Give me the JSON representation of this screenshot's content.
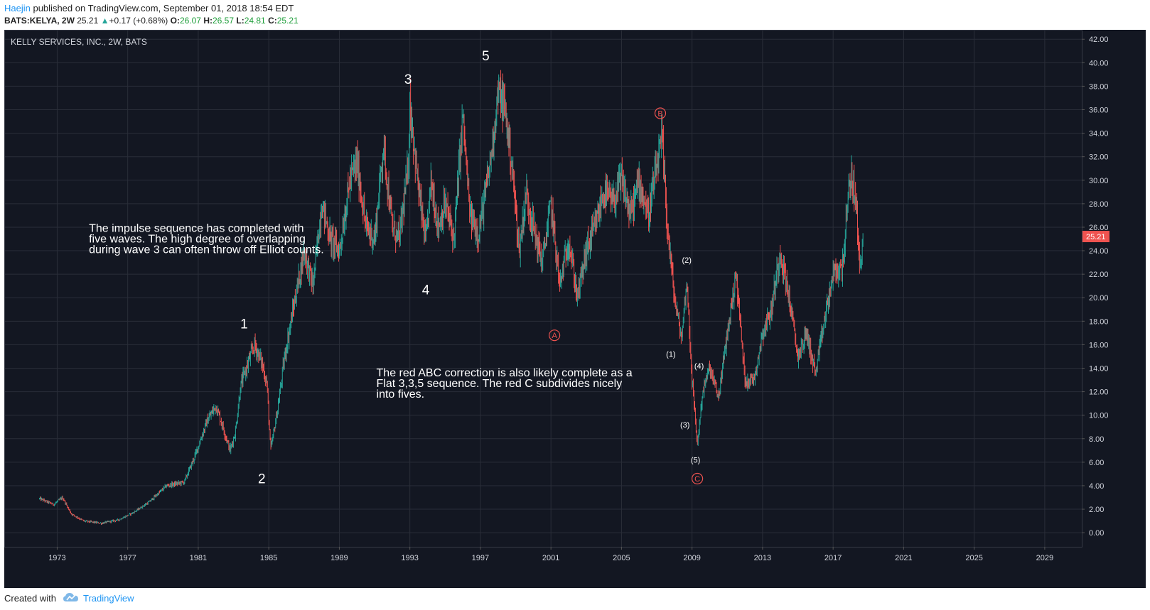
{
  "header": {
    "author": "Haejin",
    "published_text": " published on TradingView.com, September 01, 2018 18:54 EDT",
    "symbol": "BATS:KELYA, 2W",
    "last": "25.21",
    "change": "+0.17 (+0.68%)",
    "o_label": "O:",
    "o_value": "26.07",
    "h_label": "H:",
    "h_value": "26.57",
    "l_label": "L:",
    "l_value": "24.81",
    "c_label": "C:",
    "c_value": "25.21"
  },
  "footer": {
    "created_with": "Created with",
    "brand": "TradingView"
  },
  "colors": {
    "background": "#131722",
    "up": "#26a69a",
    "down": "#ef5350",
    "grid": "#2a2e39",
    "axis_text": "#d1d4dc",
    "wave_red": "#ef5350",
    "wave_white": "#ffffff"
  },
  "chart_data": {
    "type": "candlestick",
    "title": "KELLY SERVICES, INC., 2W, BATS",
    "ylim": [
      -1.2,
      42.8
    ],
    "y_ticks": [
      "0.00",
      "2.00",
      "4.00",
      "6.00",
      "8.00",
      "10.00",
      "12.00",
      "14.00",
      "16.00",
      "18.00",
      "20.00",
      "22.00",
      "24.00",
      "26.00",
      "28.00",
      "30.00",
      "32.00",
      "34.00",
      "36.00",
      "38.00",
      "40.00",
      "42.00"
    ],
    "xlim": [
      1970.0,
      2031.1
    ],
    "x_ticks": [
      "1973",
      "1977",
      "1981",
      "1985",
      "1989",
      "1993",
      "1997",
      "2001",
      "2005",
      "2009",
      "2013",
      "2017",
      "2021",
      "2025",
      "2029"
    ],
    "last_price_label": "25.21",
    "price_path": [
      [
        1972.0,
        2.9
      ],
      [
        1972.8,
        2.4
      ],
      [
        1973.3,
        3.0
      ],
      [
        1973.8,
        1.6
      ],
      [
        1974.5,
        1.0
      ],
      [
        1975.5,
        0.8
      ],
      [
        1976.5,
        1.1
      ],
      [
        1977.3,
        1.7
      ],
      [
        1978.2,
        2.6
      ],
      [
        1979.2,
        4.0
      ],
      [
        1980.2,
        4.3
      ],
      [
        1980.8,
        6.5
      ],
      [
        1981.5,
        9.5
      ],
      [
        1982.0,
        10.8
      ],
      [
        1982.4,
        9.0
      ],
      [
        1982.8,
        7.0
      ],
      [
        1983.1,
        8.5
      ],
      [
        1983.4,
        12.5
      ],
      [
        1983.9,
        14.8
      ],
      [
        1984.2,
        16.0
      ],
      [
        1984.6,
        14.5
      ],
      [
        1984.9,
        12.6
      ],
      [
        1985.1,
        7.0
      ],
      [
        1985.5,
        10.5
      ],
      [
        1985.9,
        15.0
      ],
      [
        1986.5,
        20.0
      ],
      [
        1987.0,
        24.0
      ],
      [
        1987.5,
        21.0
      ],
      [
        1988.0,
        28.0
      ],
      [
        1988.5,
        25.0
      ],
      [
        1989.0,
        24.0
      ],
      [
        1989.6,
        30.0
      ],
      [
        1990.0,
        31.5
      ],
      [
        1990.5,
        26.0
      ],
      [
        1991.0,
        25.0
      ],
      [
        1991.5,
        33.0
      ],
      [
        1992.0,
        26.0
      ],
      [
        1992.4,
        25.0
      ],
      [
        1992.9,
        31.0
      ],
      [
        1993.0,
        36.5
      ],
      [
        1993.5,
        29.0
      ],
      [
        1993.9,
        24.5
      ],
      [
        1994.2,
        30.0
      ],
      [
        1994.6,
        26.0
      ],
      [
        1995.0,
        28.0
      ],
      [
        1995.5,
        25.0
      ],
      [
        1996.0,
        35.5
      ],
      [
        1996.4,
        27.0
      ],
      [
        1996.9,
        25.5
      ],
      [
        1997.3,
        29.0
      ],
      [
        1997.6,
        32.0
      ],
      [
        1998.0,
        37.5
      ],
      [
        1998.4,
        36.0
      ],
      [
        1998.8,
        31.0
      ],
      [
        1999.2,
        24.0
      ],
      [
        1999.6,
        29.0
      ],
      [
        2000.0,
        26.0
      ],
      [
        2000.5,
        23.0
      ],
      [
        2001.0,
        28.0
      ],
      [
        2001.5,
        21.0
      ],
      [
        2002.0,
        25.0
      ],
      [
        2002.5,
        20.0
      ],
      [
        2003.0,
        24.0
      ],
      [
        2003.5,
        26.0
      ],
      [
        2004.0,
        29.0
      ],
      [
        2004.5,
        28.0
      ],
      [
        2005.0,
        30.0
      ],
      [
        2005.5,
        27.0
      ],
      [
        2006.0,
        30.0
      ],
      [
        2006.5,
        27.0
      ],
      [
        2007.0,
        31.0
      ],
      [
        2007.3,
        33.5
      ],
      [
        2007.6,
        26.0
      ],
      [
        2008.0,
        20.0
      ],
      [
        2008.4,
        16.5
      ],
      [
        2008.7,
        21.5
      ],
      [
        2009.0,
        13.0
      ],
      [
        2009.3,
        7.5
      ],
      [
        2009.6,
        12.0
      ],
      [
        2010.0,
        14.0
      ],
      [
        2010.5,
        11.5
      ],
      [
        2011.0,
        17.0
      ],
      [
        2011.5,
        22.0
      ],
      [
        2012.0,
        13.0
      ],
      [
        2012.5,
        13.0
      ],
      [
        2013.0,
        17.0
      ],
      [
        2013.5,
        19.0
      ],
      [
        2014.0,
        24.0
      ],
      [
        2014.5,
        20.0
      ],
      [
        2015.0,
        15.0
      ],
      [
        2015.5,
        17.0
      ],
      [
        2016.0,
        13.5
      ],
      [
        2016.5,
        18.0
      ],
      [
        2017.0,
        22.0
      ],
      [
        2017.5,
        22.5
      ],
      [
        2018.0,
        30.5
      ],
      [
        2018.3,
        28.0
      ],
      [
        2018.5,
        22.5
      ],
      [
        2018.7,
        25.21
      ]
    ],
    "wave_labels": [
      {
        "text": "1",
        "x": 1983.6,
        "y": 17.8,
        "color": "white",
        "style": "plain"
      },
      {
        "text": "2",
        "x": 1984.6,
        "y": 4.6,
        "color": "white",
        "style": "plain"
      },
      {
        "text": "3",
        "x": 1992.9,
        "y": 38.6,
        "color": "white",
        "style": "plain"
      },
      {
        "text": "4",
        "x": 1993.9,
        "y": 20.7,
        "color": "white",
        "style": "plain"
      },
      {
        "text": "5",
        "x": 1997.3,
        "y": 40.6,
        "color": "white",
        "style": "plain"
      },
      {
        "text": "A",
        "x": 2001.2,
        "y": 16.8,
        "color": "red",
        "style": "circle"
      },
      {
        "text": "B",
        "x": 2007.2,
        "y": 35.7,
        "color": "red",
        "style": "circle"
      },
      {
        "text": "C",
        "x": 2009.3,
        "y": 4.6,
        "color": "red",
        "style": "circle"
      },
      {
        "text": "(1)",
        "x": 2007.8,
        "y": 15.2,
        "color": "white",
        "style": "small"
      },
      {
        "text": "(2)",
        "x": 2008.7,
        "y": 23.2,
        "color": "white",
        "style": "small"
      },
      {
        "text": "(3)",
        "x": 2008.6,
        "y": 9.2,
        "color": "white",
        "style": "small"
      },
      {
        "text": "(4)",
        "x": 2009.4,
        "y": 14.2,
        "color": "white",
        "style": "small"
      },
      {
        "text": "(5)",
        "x": 2009.2,
        "y": 6.2,
        "color": "white",
        "style": "small"
      }
    ],
    "annotations": [
      {
        "lines": [
          "The impulse sequence has completed with",
          "five waves. The high degree of overlapping",
          "during wave 3 can often throw off Elliot counts."
        ],
        "x": 1974.8,
        "y": 25.6
      },
      {
        "lines": [
          "The red ABC correction is also likely complete as a",
          "Flat 3,3,5 sequence. The red C subdivides nicely",
          "into fives."
        ],
        "x": 1991.1,
        "y": 13.3
      }
    ]
  }
}
